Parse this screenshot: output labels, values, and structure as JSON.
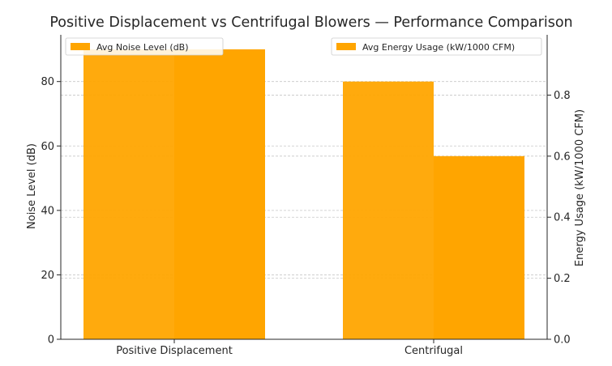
{
  "chart_data": {
    "type": "bar",
    "title": "Positive Displacement vs Centrifugal Blowers — Performance Comparison",
    "categories": [
      "Positive Displacement",
      "Centrifugal"
    ],
    "series": [
      {
        "name": "Avg Noise Level (dB)",
        "axis": "left",
        "values": [
          90,
          80
        ],
        "color": "#FFA500"
      },
      {
        "name": "Avg Energy Usage (kW/1000 CFM)",
        "axis": "right",
        "values": [
          0.95,
          0.6
        ],
        "color": "#FFA500"
      }
    ],
    "y_left": {
      "label": "Noise Level (dB)",
      "range": [
        0,
        94.5
      ],
      "ticks": [
        0,
        20,
        40,
        60,
        80
      ]
    },
    "y_right": {
      "label": "Energy Usage (kW/1000 CFM)",
      "range": [
        0,
        0.9975
      ],
      "ticks": [
        "0.0",
        "0.2",
        "0.4",
        "0.6",
        "0.8"
      ]
    },
    "grid": true,
    "legends": [
      "top-left",
      "top-right"
    ]
  }
}
